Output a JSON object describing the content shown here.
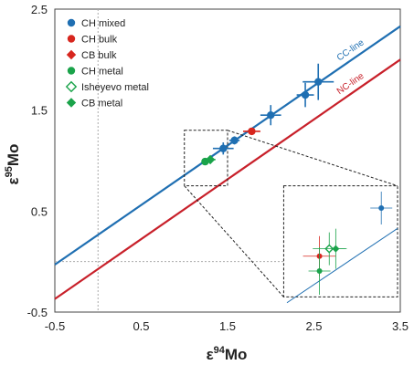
{
  "chart_data": {
    "type": "scatter",
    "xlabel": "ε94Mo",
    "ylabel": "ε95Mo",
    "xlabel_sup": "94",
    "xlabel_base": "Mo",
    "ylabel_sup": "95",
    "ylabel_base": "Mo",
    "xlim": [
      -0.5,
      3.5
    ],
    "ylim": [
      -0.5,
      2.5
    ],
    "xticks": [
      "-0.5",
      "0.5",
      "1.5",
      "2.5",
      "3.5"
    ],
    "yticks": [
      "2.5",
      "1.5",
      "0.5",
      "-0.5"
    ],
    "xtick_values": [
      -0.5,
      0.5,
      1.5,
      2.5,
      3.5
    ],
    "ytick_values": [
      2.5,
      1.5,
      0.5,
      -0.5
    ],
    "reference_lines": {
      "x": 0,
      "y": 0
    },
    "legend_position": "top-left",
    "lines": [
      {
        "label": "CC-line",
        "color": "#1f6fb2",
        "x": [
          -0.5,
          3.5
        ],
        "y": [
          -0.03,
          2.33
        ]
      },
      {
        "label": "NC-line",
        "color": "#c8202a",
        "x": [
          -0.5,
          3.5
        ],
        "y": [
          -0.37,
          2.0
        ]
      }
    ],
    "series": [
      {
        "name": "CH mixed",
        "marker": "circle",
        "color": "#1f6fb2",
        "points": [
          {
            "x": 1.45,
            "y": 1.12,
            "xerr": 0.12,
            "yerr": 0.06
          },
          {
            "x": 1.58,
            "y": 1.2,
            "xerr": 0.06,
            "yerr": 0.04
          },
          {
            "x": 2.0,
            "y": 1.45,
            "xerr": 0.12,
            "yerr": 0.1
          },
          {
            "x": 2.4,
            "y": 1.65,
            "xerr": 0.1,
            "yerr": 0.12
          },
          {
            "x": 2.55,
            "y": 1.78,
            "xerr": 0.18,
            "yerr": 0.18
          }
        ]
      },
      {
        "name": "CH bulk",
        "marker": "circle",
        "color": "#d7261e",
        "points": [
          {
            "x": 1.78,
            "y": 1.29,
            "xerr": 0.1,
            "yerr": 0.02
          }
        ]
      },
      {
        "name": "CB bulk",
        "marker": "diamond",
        "color": "#d7261e",
        "points": []
      },
      {
        "name": "CH metal",
        "marker": "circle",
        "color": "#1aa34a",
        "points": [
          {
            "x": 1.24,
            "y": 0.99,
            "xerr": 0.04,
            "yerr": 0.03
          }
        ]
      },
      {
        "name": "Isheyevo metal",
        "marker": "diamond-open",
        "color": "#1aa34a",
        "points": []
      },
      {
        "name": "CB metal",
        "marker": "diamond",
        "color": "#1aa34a",
        "points": [
          {
            "x": 1.3,
            "y": 1.01,
            "xerr": 0.06,
            "yerr": 0.04
          }
        ]
      }
    ],
    "inset": {
      "points": [
        {
          "series": "CH mixed",
          "marker": "circle",
          "color": "#1f6fb2",
          "x": 1.45,
          "y": 1.12
        },
        {
          "series": "CH bulk",
          "marker": "circle",
          "color": "#d7261e",
          "x": 1.26,
          "y": 0.99
        },
        {
          "series": "CH metal",
          "marker": "circle",
          "color": "#1aa34a",
          "x": 1.26,
          "y": 0.95
        },
        {
          "series": "Isheyevo metal",
          "marker": "diamond-open",
          "color": "#1aa34a",
          "x": 1.29,
          "y": 1.01
        },
        {
          "series": "CB metal",
          "marker": "diamond",
          "color": "#1aa34a",
          "x": 1.31,
          "y": 1.01
        }
      ]
    }
  }
}
